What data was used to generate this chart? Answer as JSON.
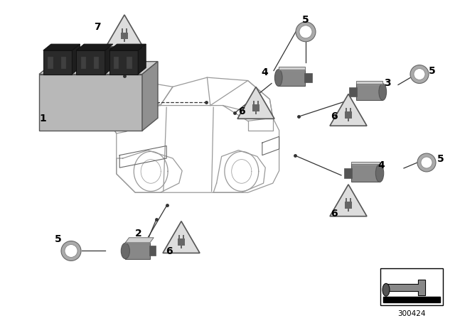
{
  "bg_color": "#ffffff",
  "fig_width": 6.4,
  "fig_height": 4.48,
  "dpi": 100,
  "part_number": "300424",
  "module_face_color": "#b8b8b8",
  "module_top_color": "#d0d0d0",
  "module_side_color": "#909090",
  "connector_color": "#2a2a2a",
  "connector_top_color": "#1a1a1a",
  "sensor_body_color": "#888888",
  "sensor_face_color": "#6a6a6a",
  "sensor_dark": "#555555",
  "ring_color": "#aaaaaa",
  "ring_inner": "#ffffff",
  "car_line_color": "#999999",
  "line_color": "#333333",
  "label_color": "#000000",
  "warn_fill": "#dddddd",
  "warn_edge": "#555555",
  "plug_color": "#666666"
}
